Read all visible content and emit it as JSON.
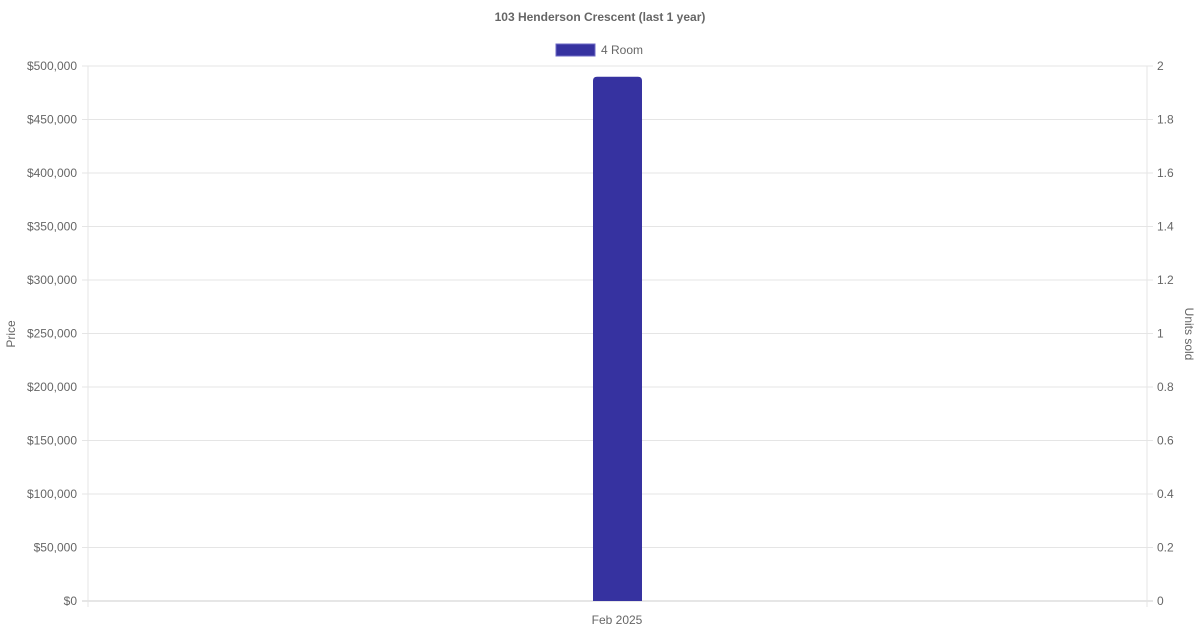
{
  "chart_data": {
    "type": "bar",
    "title": "103 Henderson Crescent (last 1 year)",
    "categories": [
      "Feb 2025"
    ],
    "series": [
      {
        "name": "4 Room",
        "values": [
          490000
        ],
        "color": "#3632a0"
      }
    ],
    "ylabel": "Price",
    "y2label": "Units sold",
    "ylim": [
      0,
      500000
    ],
    "y2lim": [
      0,
      2
    ],
    "yticks": [
      "$0",
      "$50,000",
      "$100,000",
      "$150,000",
      "$200,000",
      "$250,000",
      "$300,000",
      "$350,000",
      "$400,000",
      "$450,000",
      "$500,000"
    ],
    "y2ticks": [
      "0",
      "0.2",
      "0.4",
      "0.6",
      "0.8",
      "1",
      "1.2",
      "1.4",
      "1.6",
      "1.8",
      "2"
    ],
    "grid": true,
    "legend": "top"
  }
}
